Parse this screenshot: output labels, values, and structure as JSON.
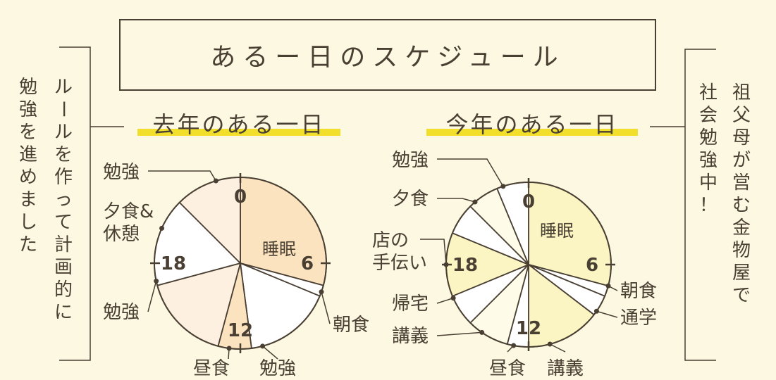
{
  "title": "あるー日のスケジュール",
  "left_note": [
    "ルールを作って計画的に",
    "勉強を進めました"
  ],
  "right_note": [
    "祖父母が営む金物屋で",
    "社会勉強中！"
  ],
  "colors": {
    "background": "#fdf8e1",
    "ink": "#4a3f33",
    "highlight": "#f2df2c",
    "last_year_sleep": "#fbe3c0",
    "last_year_study": "#fdf0e1",
    "this_year_sleep": "#fbf5c3",
    "this_year_light": "#fefce9",
    "white": "#ffffff"
  },
  "chart_data": [
    {
      "type": "pie",
      "title": "去年のある一日",
      "unit": "hour",
      "start": 0,
      "end": 24,
      "hour_labels": [
        "0",
        "6",
        "12",
        "18"
      ],
      "slices": [
        {
          "label": "睡眠",
          "from": 0.0,
          "to": 7.0,
          "color": "#fbe3c0"
        },
        {
          "label": "朝食",
          "from": 7.0,
          "to": 7.5,
          "color": "#ffffff"
        },
        {
          "label": "勉強",
          "from": 7.5,
          "to": 11.5,
          "color": "#ffffff"
        },
        {
          "label": "昼食",
          "from": 11.5,
          "to": 13.0,
          "color": "#fbe3c0"
        },
        {
          "label": "勉強",
          "from": 13.0,
          "to": 17.0,
          "color": "#fdf0e1"
        },
        {
          "label": "夕食&\n休憩",
          "from": 17.0,
          "to": 21.0,
          "color": "#ffffff"
        },
        {
          "label": "勉強",
          "from": 21.0,
          "to": 24.0,
          "color": "#fdf0e1"
        }
      ],
      "callouts": [
        "勉強",
        "夕食&\n休憩",
        "勉強",
        "昼食",
        "勉強",
        "朝食"
      ],
      "inner_label": "睡眠"
    },
    {
      "type": "pie",
      "title": "今年のある一日",
      "unit": "hour",
      "start": 0,
      "end": 24,
      "hour_labels": [
        "0",
        "6",
        "12",
        "18"
      ],
      "slices": [
        {
          "label": "睡眠",
          "from": 0.0,
          "to": 7.0,
          "color": "#fbf5c3"
        },
        {
          "label": "朝食",
          "from": 7.0,
          "to": 7.5,
          "color": "#ffffff"
        },
        {
          "label": "通学",
          "from": 7.5,
          "to": 8.5,
          "color": "#ffffff"
        },
        {
          "label": "講義",
          "from": 8.5,
          "to": 12.0,
          "color": "#fbf5c3"
        },
        {
          "label": "昼食",
          "from": 12.0,
          "to": 13.0,
          "color": "#ffffff"
        },
        {
          "label": "講義",
          "from": 13.0,
          "to": 15.0,
          "color": "#fefce9"
        },
        {
          "label": "帰宅",
          "from": 15.0,
          "to": 16.5,
          "color": "#ffffff"
        },
        {
          "label": "店の\n手伝い",
          "from": 16.5,
          "to": 19.5,
          "color": "#fbf5c3"
        },
        {
          "label": "夕食",
          "from": 19.5,
          "to": 21.0,
          "color": "#ffffff"
        },
        {
          "label": "勉強",
          "from": 21.0,
          "to": 22.5,
          "color": "#fefce9"
        },
        {
          "label": "勉強",
          "from": 22.5,
          "to": 24.0,
          "color": "#ffffff"
        }
      ],
      "callouts": [
        "勉強",
        "夕食",
        "店の\n手伝い",
        "帰宅",
        "講義",
        "昼食",
        "講義",
        "朝食",
        "通学"
      ],
      "inner_label": "睡眠"
    }
  ]
}
